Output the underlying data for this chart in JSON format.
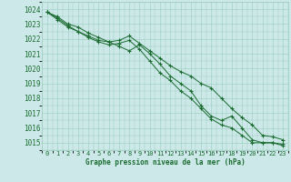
{
  "xlabel": "Graphe pression niveau de la mer (hPa)",
  "bg_color": "#cce8e8",
  "grid_color": "#99ccbb",
  "line_color": "#1a6b30",
  "x": [
    0,
    1,
    2,
    3,
    4,
    5,
    6,
    7,
    8,
    9,
    10,
    11,
    12,
    13,
    14,
    15,
    16,
    17,
    18,
    19,
    20,
    21,
    22,
    23
  ],
  "line1": [
    1023.8,
    1023.5,
    1023.0,
    1022.8,
    1022.4,
    1022.1,
    1021.8,
    1021.5,
    1021.2,
    1021.6,
    1021.0,
    1020.3,
    1019.5,
    1019.0,
    1018.5,
    1017.5,
    1016.8,
    1016.5,
    1016.8,
    1016.0,
    1015.2,
    1015.0,
    1015.0,
    1014.8
  ],
  "line2": [
    1023.8,
    1023.4,
    1022.9,
    1022.5,
    1022.1,
    1021.8,
    1021.6,
    1021.7,
    1021.9,
    1021.3,
    1020.5,
    1019.7,
    1019.2,
    1018.5,
    1018.0,
    1017.3,
    1016.6,
    1016.2,
    1016.0,
    1015.5,
    1015.0,
    1015.0,
    1015.0,
    1014.9
  ],
  "line3": [
    1023.8,
    1023.3,
    1022.8,
    1022.5,
    1022.2,
    1021.9,
    1021.8,
    1021.9,
    1022.2,
    1021.7,
    1021.2,
    1020.7,
    1020.2,
    1019.8,
    1019.5,
    1019.0,
    1018.7,
    1018.0,
    1017.3,
    1016.7,
    1016.2,
    1015.5,
    1015.4,
    1015.2
  ],
  "ylim": [
    1014.5,
    1024.5
  ],
  "yticks": [
    1015,
    1016,
    1017,
    1018,
    1019,
    1020,
    1021,
    1022,
    1023,
    1024
  ],
  "xticks": [
    0,
    1,
    2,
    3,
    4,
    5,
    6,
    7,
    8,
    9,
    10,
    11,
    12,
    13,
    14,
    15,
    16,
    17,
    18,
    19,
    20,
    21,
    22,
    23
  ]
}
